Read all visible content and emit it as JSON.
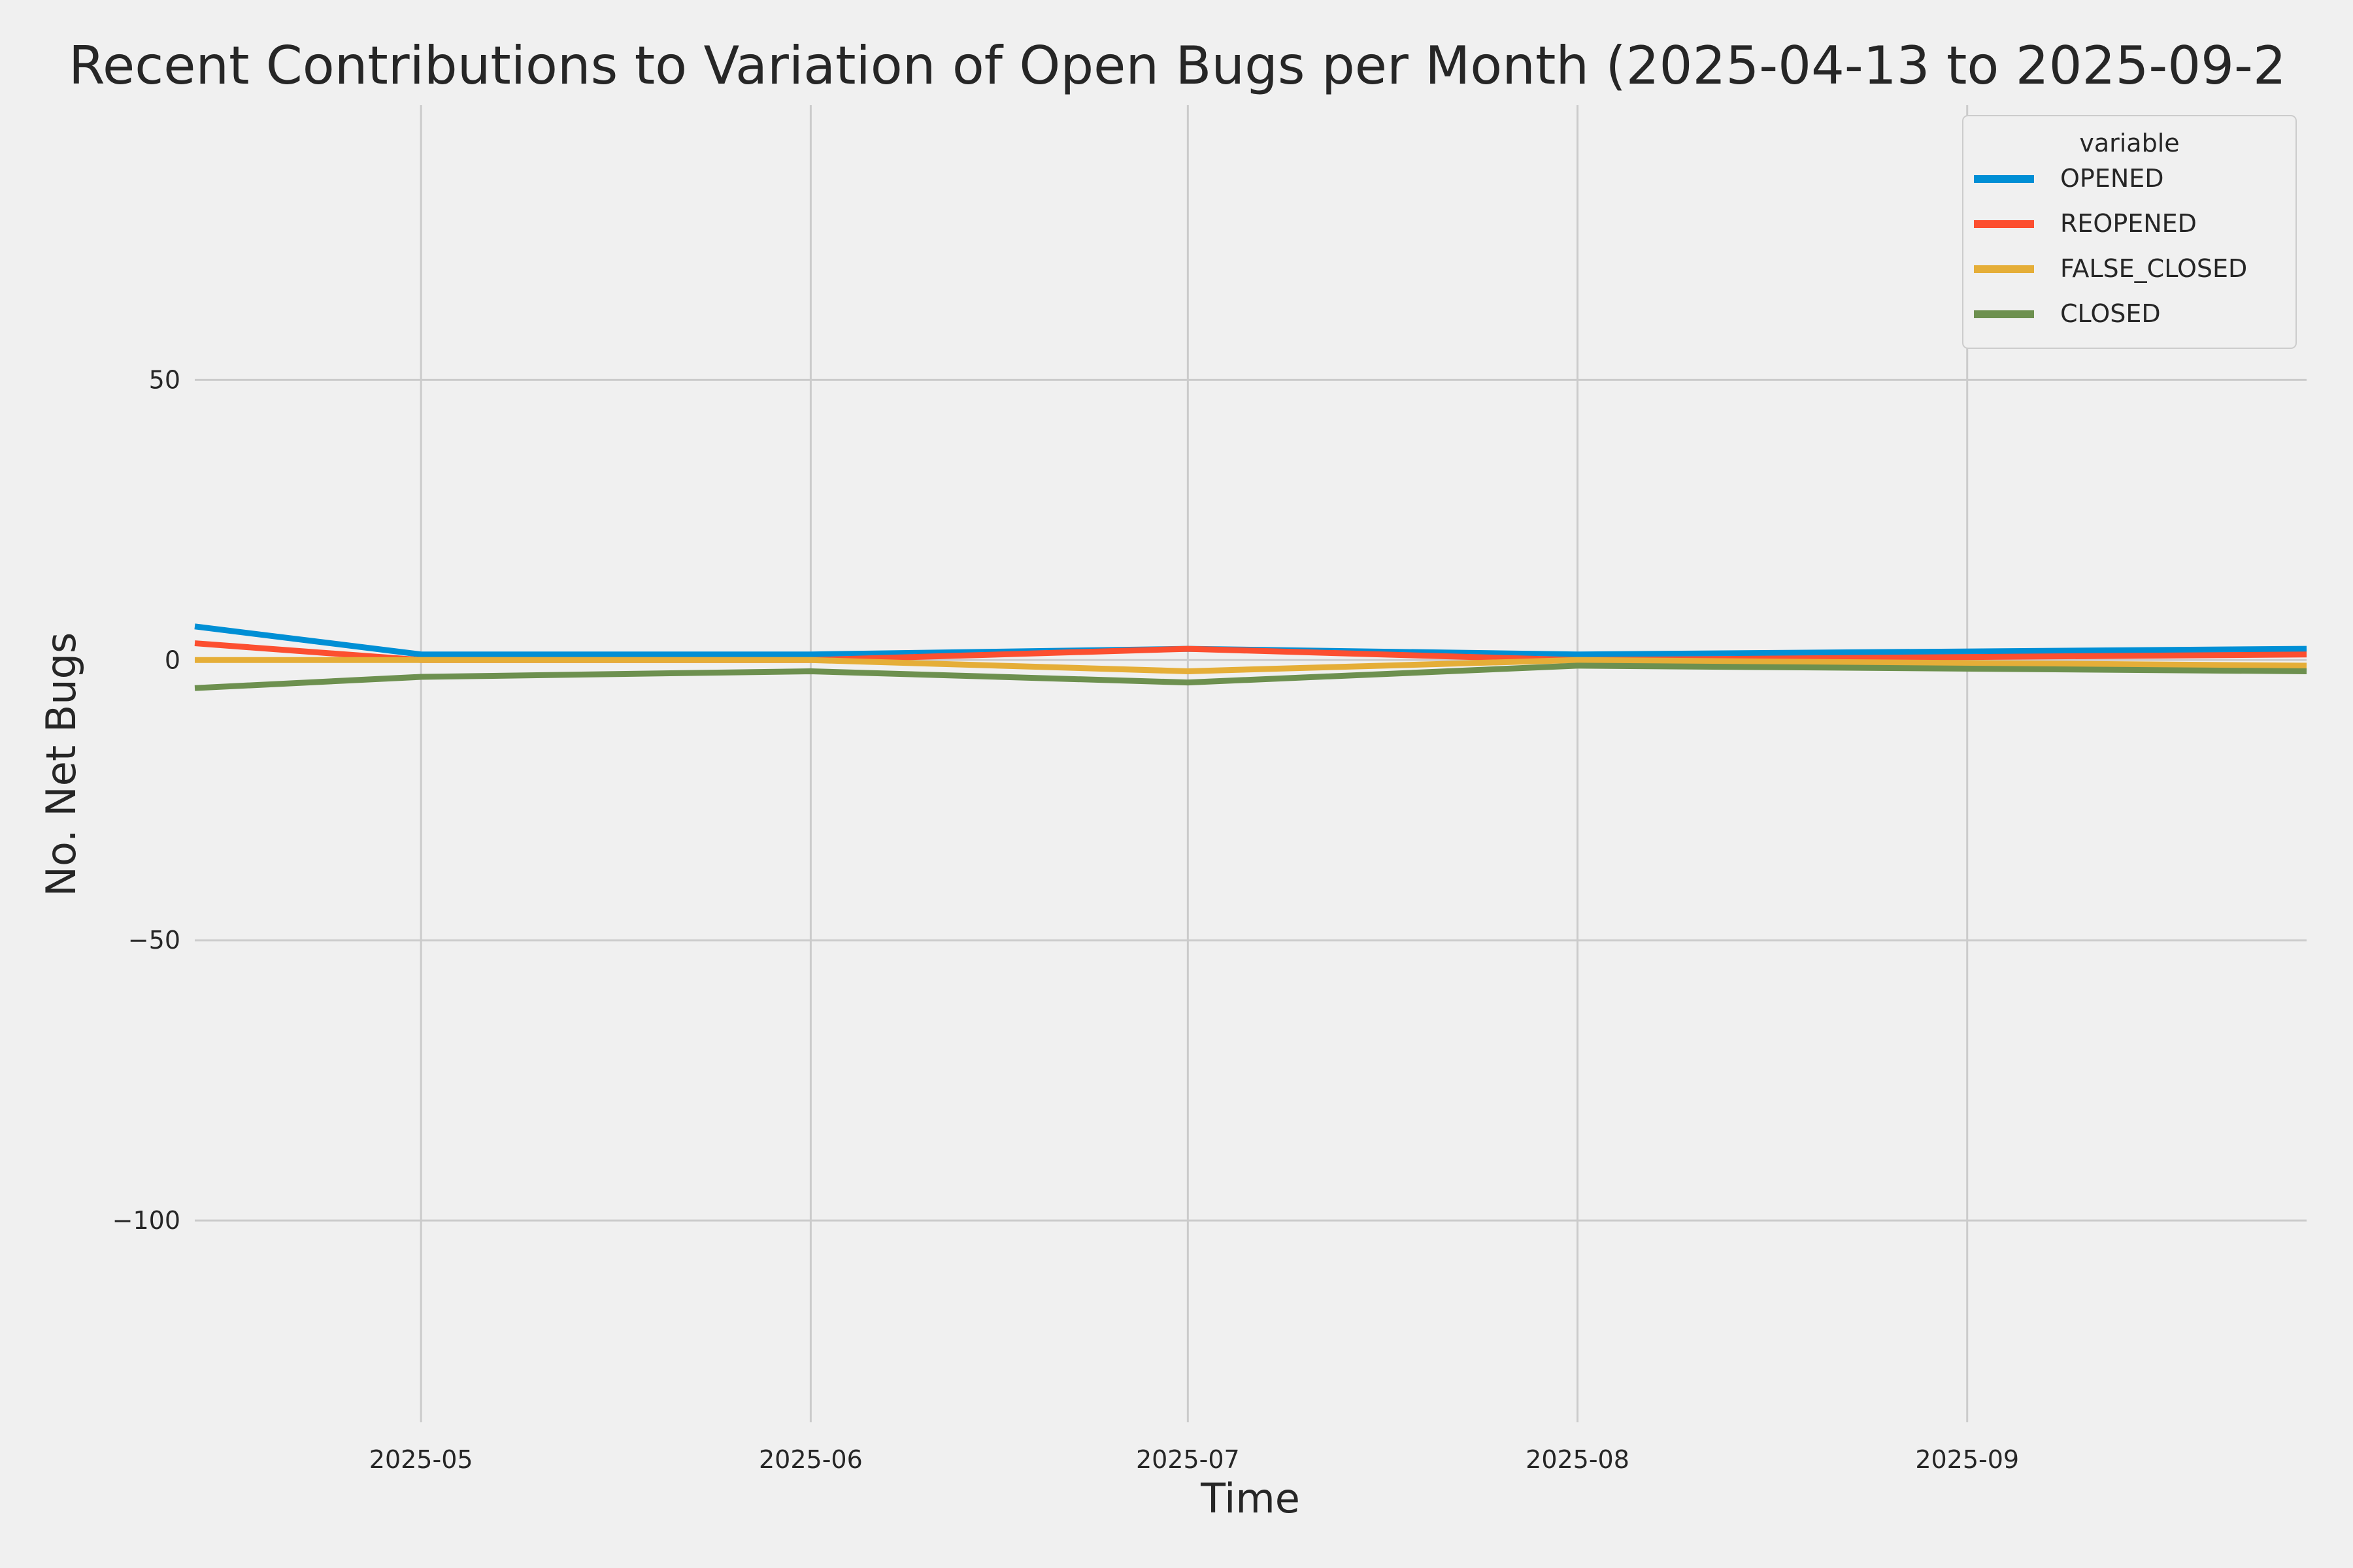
{
  "chart_data": {
    "type": "line",
    "title": "Recent Contributions to Variation of Open Bugs per Month (2025-04-13 to 2025-09-2",
    "xlabel": "Time",
    "ylabel": "No. Net Bugs",
    "x": [
      "2025-04-13",
      "2025-05-01",
      "2025-06-01",
      "2025-07-01",
      "2025-08-01",
      "2025-09-28"
    ],
    "xlim": [
      "2025-04-13",
      "2025-09-28"
    ],
    "ylim": [
      -136,
      99
    ],
    "xticks": [
      {
        "date": "2025-05-01",
        "label": "2025-05"
      },
      {
        "date": "2025-06-01",
        "label": "2025-06"
      },
      {
        "date": "2025-07-01",
        "label": "2025-07"
      },
      {
        "date": "2025-08-01",
        "label": "2025-08"
      },
      {
        "date": "2025-09-01",
        "label": "2025-09"
      }
    ],
    "yticks": [
      {
        "value": 50,
        "label": "50"
      },
      {
        "value": 0,
        "label": "0"
      },
      {
        "value": -50,
        "label": "−50"
      },
      {
        "value": -100,
        "label": "−100"
      }
    ],
    "grid": true,
    "legend": {
      "title": "variable",
      "placement": "top-right"
    },
    "series": [
      {
        "name": "OPENED",
        "color": "#008fd5",
        "values": [
          6,
          1,
          1,
          2,
          1,
          2
        ]
      },
      {
        "name": "REOPENED",
        "color": "#fc4f30",
        "values": [
          3,
          0,
          0,
          2,
          0,
          1
        ]
      },
      {
        "name": "FALSE_CLOSED",
        "color": "#e5ae38",
        "values": [
          0,
          0,
          0,
          -2,
          0,
          -1
        ]
      },
      {
        "name": "CLOSED",
        "color": "#6d904f",
        "values": [
          -5,
          -3,
          -2,
          -4,
          -1,
          -2
        ]
      }
    ]
  }
}
